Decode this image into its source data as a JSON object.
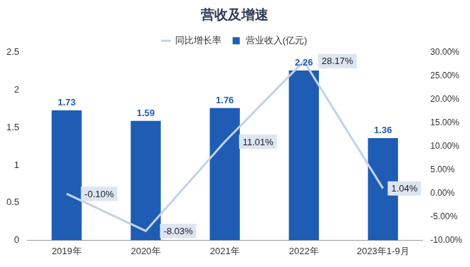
{
  "chart_data": {
    "type": "bar",
    "title": "营收及增速",
    "categories": [
      "2019年",
      "2020年",
      "2021年",
      "2022年",
      "2023年1-9月"
    ],
    "series": [
      {
        "name": "营业收入(亿元)",
        "type": "bar",
        "color": "#1f5cb4",
        "values": [
          1.73,
          1.59,
          1.76,
          2.26,
          1.36
        ]
      },
      {
        "name": "同比增长率",
        "type": "line",
        "color": "#c3d2ea",
        "axis": "y2",
        "marker": "none",
        "values": [
          -0.1,
          -8.03,
          11.01,
          28.17,
          1.04
        ],
        "value_labels": [
          "-0.10%",
          "-8.03%",
          "11.01%",
          "28.17%",
          "1.04%"
        ]
      }
    ],
    "ylim": [
      0,
      2.5
    ],
    "yticks": [
      0,
      0.5,
      1,
      1.5,
      2,
      2.5
    ],
    "y2lim": [
      -10,
      30
    ],
    "y2ticks": [
      {
        "value": -10,
        "label": "-10.00%"
      },
      {
        "value": -5,
        "label": "-5.00%"
      },
      {
        "value": 0,
        "label": "0.00%"
      },
      {
        "value": 5,
        "label": "5.00%"
      },
      {
        "value": 10,
        "label": "10.00%"
      },
      {
        "value": 15,
        "label": "15.00%"
      },
      {
        "value": 20,
        "label": "20.00%"
      },
      {
        "value": 25,
        "label": "25.00%"
      },
      {
        "value": 30,
        "label": "30.00%"
      }
    ],
    "grid": false,
    "legend": "top",
    "data_labels": true
  }
}
